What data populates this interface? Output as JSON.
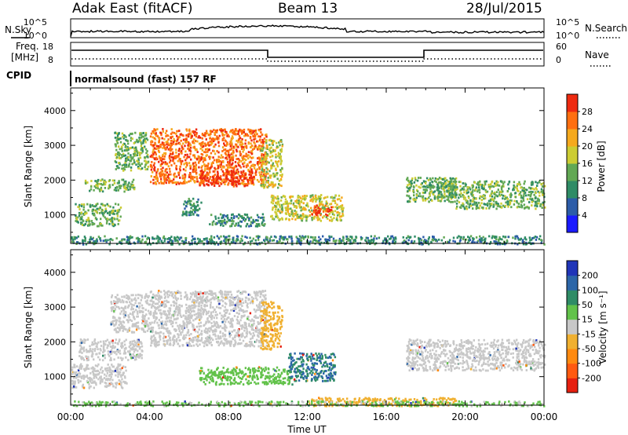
{
  "header": {
    "station": "Adak East (fitACF)",
    "beam": "Beam 13",
    "date": "28/Jul/2015"
  },
  "top_panels": {
    "nsky_label": "N.Sky",
    "nsearch_label": "N.Search",
    "nsky_ticks": [
      "10^5",
      "10^0"
    ],
    "nsearch_ticks": [
      "10^5",
      "10^0"
    ],
    "freq_label_1": "Freq.",
    "freq_label_2": "[MHz]",
    "freq_ticks": [
      "18",
      "8"
    ],
    "nave_label": "Nave",
    "nave_ticks": [
      "60",
      "0"
    ],
    "cpid_label": "CPID",
    "cpid_text": "normalsound (fast) 157 RF"
  },
  "chart_data": [
    {
      "type": "heatmap",
      "name": "power",
      "ylabel": "Slant Range [km]",
      "colorbar_label": "Power [dB]",
      "ylim": [
        180,
        4650
      ],
      "yticks": [
        1000,
        2000,
        3000,
        4000
      ],
      "xlim": [
        0,
        24
      ],
      "colorbar_ticks": [
        "4",
        "8",
        "12",
        "16",
        "20",
        "24",
        "28"
      ],
      "colorbar_colors": [
        "#1a1aff",
        "#2c5ca8",
        "#2f8c66",
        "#62a854",
        "#cccc33",
        "#f5a91e",
        "#ff6f10",
        "#ee2a10"
      ],
      "features": [
        {
          "t_start": 0.7,
          "t_end": 3.2,
          "r_start": 1700,
          "r_end": 2050,
          "level": 12
        },
        {
          "t_start": 2.2,
          "t_end": 3.9,
          "r_start": 2300,
          "r_end": 3400,
          "level": 14
        },
        {
          "t_start": 0.2,
          "t_end": 2.5,
          "r_start": 700,
          "r_end": 1350,
          "level": 12
        },
        {
          "t_start": 4.0,
          "t_end": 9.9,
          "r_start": 1900,
          "r_end": 3500,
          "level": 24
        },
        {
          "t_start": 6.5,
          "t_end": 9.2,
          "r_start": 1850,
          "r_end": 2300,
          "level": 28
        },
        {
          "t_start": 9.6,
          "t_end": 10.7,
          "r_start": 1800,
          "r_end": 3200,
          "level": 18
        },
        {
          "t_start": 10.1,
          "t_end": 13.8,
          "r_start": 850,
          "r_end": 1600,
          "level": 18
        },
        {
          "t_start": 12.2,
          "t_end": 13.2,
          "r_start": 1000,
          "r_end": 1300,
          "level": 28
        },
        {
          "t_start": 5.6,
          "t_end": 6.6,
          "r_start": 1000,
          "r_end": 1500,
          "level": 10
        },
        {
          "t_start": 7.0,
          "t_end": 9.8,
          "r_start": 700,
          "r_end": 1050,
          "level": 10
        },
        {
          "t_start": 17.0,
          "t_end": 19.5,
          "r_start": 1400,
          "r_end": 2100,
          "level": 12
        },
        {
          "t_start": 18.5,
          "t_end": 24.0,
          "r_start": 1500,
          "r_end": 2000,
          "level": 14
        },
        {
          "t_start": 19.5,
          "t_end": 24.0,
          "r_start": 1200,
          "r_end": 1500,
          "level": 12
        },
        {
          "t_start": 0.0,
          "t_end": 24.0,
          "r_start": 180,
          "r_end": 420,
          "level": 8
        }
      ]
    },
    {
      "type": "heatmap",
      "name": "velocity",
      "xlabel": "Time UT",
      "ylabel": "Slant Range [km]",
      "colorbar_label": "Velocity [m s⁻¹]",
      "ylim": [
        180,
        4650
      ],
      "yticks": [
        1000,
        2000,
        3000,
        4000
      ],
      "xlim": [
        0,
        24
      ],
      "xticks": [
        "00:00",
        "04:00",
        "08:00",
        "12:00",
        "16:00",
        "20:00",
        "00:00"
      ],
      "colorbar_ticks": [
        "200",
        "100",
        "50",
        "15",
        "-15",
        "-50",
        "-100",
        "-200"
      ],
      "colorbar_colors": [
        "#2035b8",
        "#2c66a8",
        "#2f8c66",
        "#62c24a",
        "#c8c8c8",
        "#f0b030",
        "#ff8a10",
        "#ff5a10",
        "#e62010"
      ],
      "features": [
        {
          "t_start": 0.4,
          "t_end": 3.6,
          "r_start": 1500,
          "r_end": 2100,
          "velocity": 0
        },
        {
          "t_start": 2.0,
          "t_end": 4.0,
          "r_start": 2300,
          "r_end": 3400,
          "velocity": 0
        },
        {
          "t_start": 0.0,
          "t_end": 2.8,
          "r_start": 700,
          "r_end": 1400,
          "velocity": 0
        },
        {
          "t_start": 4.0,
          "t_end": 9.9,
          "r_start": 1900,
          "r_end": 3500,
          "velocity": 0
        },
        {
          "t_start": 9.6,
          "t_end": 10.7,
          "r_start": 1800,
          "r_end": 3200,
          "velocity": -30
        },
        {
          "t_start": 6.5,
          "t_end": 11.2,
          "r_start": 800,
          "r_end": 1300,
          "velocity": 40
        },
        {
          "t_start": 11.0,
          "t_end": 13.4,
          "r_start": 900,
          "r_end": 1700,
          "velocity": 100
        },
        {
          "t_start": 17.0,
          "t_end": 24.0,
          "r_start": 1200,
          "r_end": 2100,
          "velocity": 0
        },
        {
          "t_start": 12.0,
          "t_end": 19.5,
          "r_start": 180,
          "r_end": 420,
          "velocity": -40
        },
        {
          "t_start": 0.0,
          "t_end": 24.0,
          "r_start": 180,
          "r_end": 320,
          "velocity": 20
        }
      ]
    }
  ]
}
